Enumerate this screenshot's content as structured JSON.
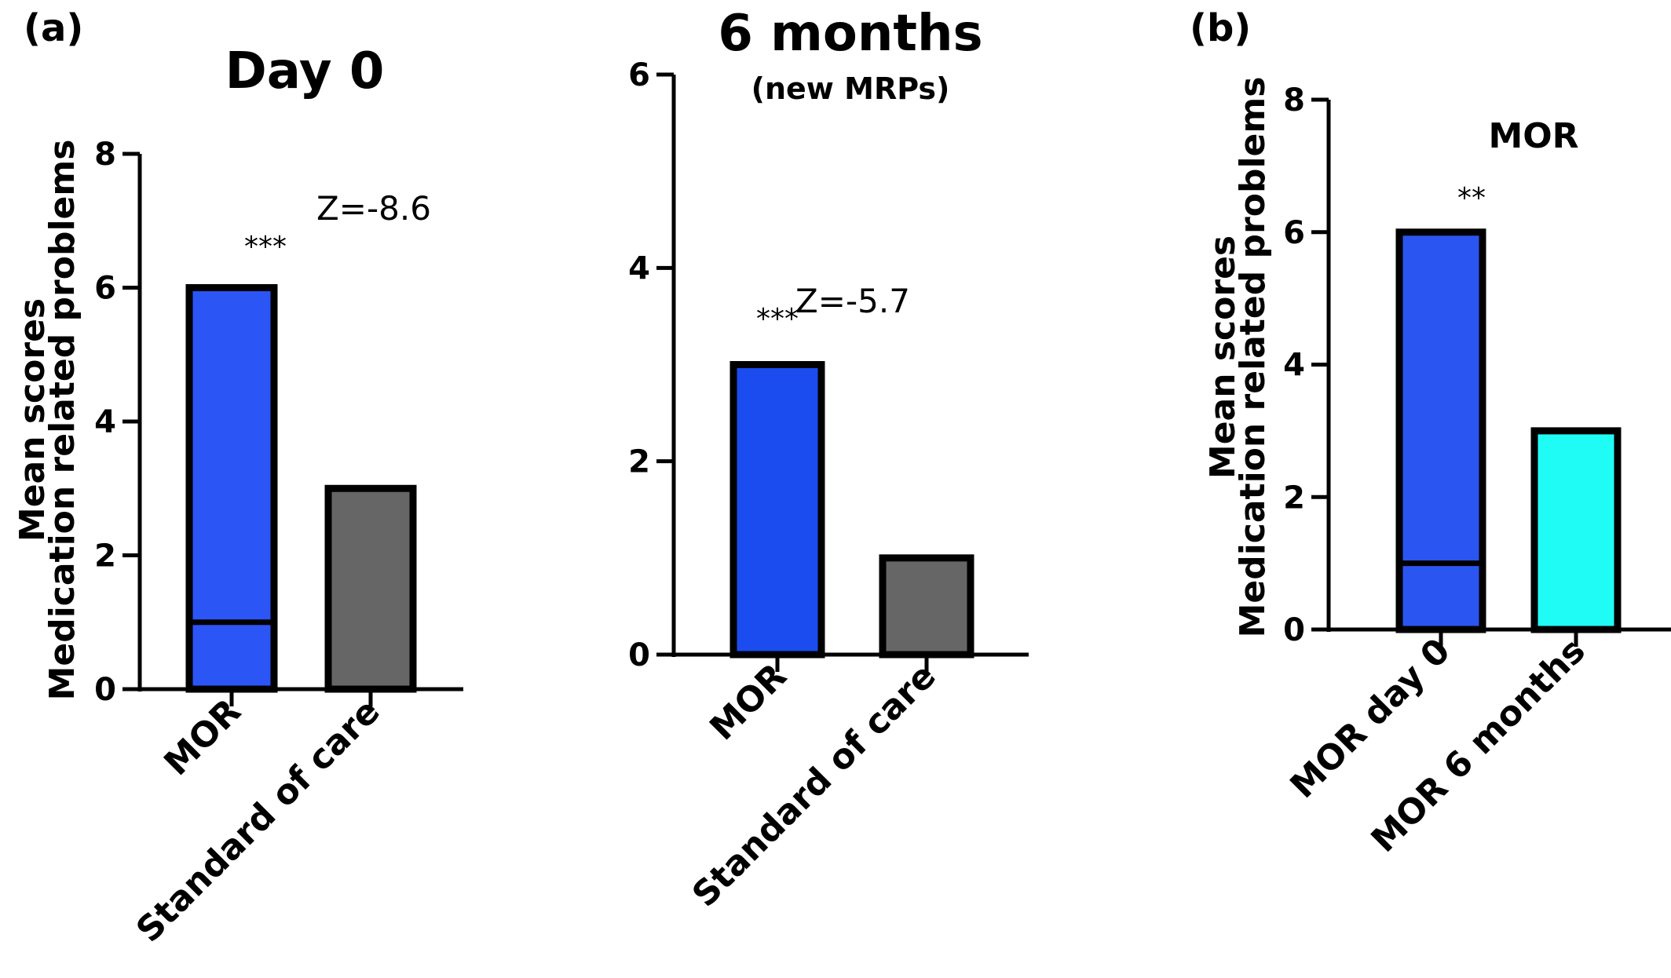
{
  "chart_data": [
    {
      "panel_label": "(a)",
      "type": "bar",
      "title": "Day 0",
      "subtitle": "",
      "ylabel_lines": [
        "Mean scores",
        "Medication related problems"
      ],
      "categories": [
        "MOR",
        "Standard of care"
      ],
      "values": [
        6,
        3
      ],
      "median_line": [
        1,
        null
      ],
      "colors": [
        "#2b55f5",
        "#666666"
      ],
      "ylim": [
        0,
        8
      ],
      "yticks": [
        0,
        2,
        4,
        6,
        8
      ],
      "significance": "***",
      "annotation": "Z=-8.6"
    },
    {
      "panel_label": "",
      "type": "bar",
      "title": "6 months",
      "subtitle": "(new MRPs)",
      "ylabel_lines": [],
      "categories": [
        "MOR",
        "Standard of care"
      ],
      "values": [
        3,
        1
      ],
      "median_line": [
        null,
        null
      ],
      "colors": [
        "#1a4cf0",
        "#666666"
      ],
      "ylim": [
        0,
        6
      ],
      "yticks": [
        0,
        2,
        4,
        6
      ],
      "significance": "***",
      "annotation": "Z=-5.7"
    },
    {
      "panel_label": "(b)",
      "type": "bar",
      "title": "MOR",
      "subtitle": "",
      "ylabel_lines": [
        "Mean scores",
        "Medication related problems"
      ],
      "categories": [
        "MOR day 0",
        "MOR 6 months"
      ],
      "values": [
        6,
        3
      ],
      "median_line": [
        1,
        null
      ],
      "colors": [
        "#2b55f0",
        "#1ffcf5"
      ],
      "ylim": [
        0,
        8
      ],
      "yticks": [
        0,
        2,
        4,
        6,
        8
      ],
      "significance": "**",
      "annotation": ""
    }
  ]
}
